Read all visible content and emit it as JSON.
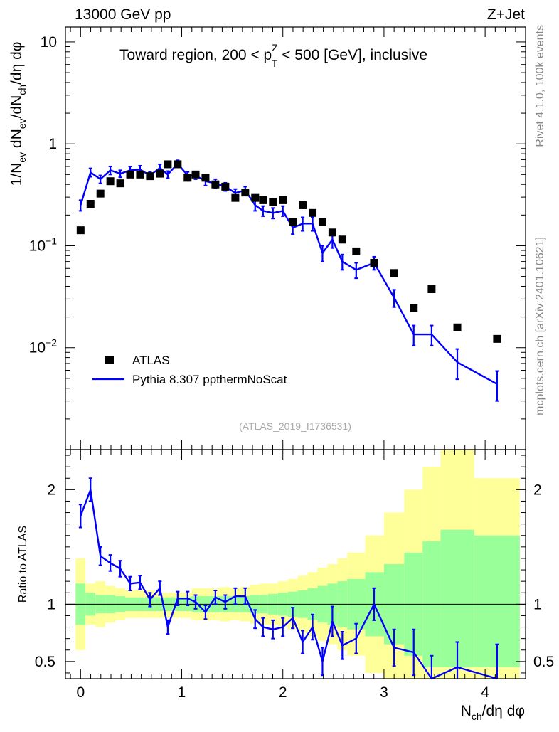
{
  "header": {
    "left": "13000 GeV pp",
    "right": "Z+Jet"
  },
  "side": {
    "rivet": "Rivet 4.1.0,  100k events",
    "mcplots": "mcplots.cern.ch [arXiv:2401.10621]"
  },
  "colors": {
    "pythia": "#0000ff",
    "yellow": "#ffff99",
    "green": "#99ff99",
    "atlas": "#000000"
  },
  "chart_data": [
    {
      "type": "scatter",
      "scale": "log",
      "title": "Toward region, 200 < p_T^Z < 500 [GeV], inclusive",
      "title_parts": {
        "pre": "Toward region, 200 < p",
        "sup": "Z",
        "sub": "T",
        "post": " < 500 [GeV], inclusive"
      },
      "ylabel": "1/N_ev dN_ev/dN_ch/dη dφ",
      "ylabel_parts": [
        "1/N",
        "ev",
        " dN",
        "ev",
        "/dN",
        "ch",
        "/dη dφ"
      ],
      "xlim": [
        -0.15,
        4.4
      ],
      "ylim": [
        0.001,
        14
      ],
      "yticks": [
        {
          "value": 10,
          "label": "10"
        },
        {
          "value": 1,
          "label": "1"
        },
        {
          "value": 0.1,
          "base": "10",
          "exp": "−1"
        },
        {
          "value": 0.01,
          "base": "10",
          "exp": "−2"
        }
      ],
      "watermark": "(ATLAS_2019_I1736531)",
      "legend": {
        "position": "bottom-left",
        "entries": [
          "ATLAS",
          "Pythia 8.307 ppthermNoScat"
        ]
      },
      "series": [
        {
          "name": "ATLAS",
          "x": [
            0.0,
            0.098,
            0.196,
            0.294,
            0.392,
            0.49,
            0.588,
            0.686,
            0.784,
            0.862,
            0.96,
            1.058,
            1.137,
            1.235,
            1.333,
            1.431,
            1.53,
            1.628,
            1.726,
            1.804,
            1.902,
            2.0,
            2.098,
            2.196,
            2.294,
            2.392,
            2.49,
            2.588,
            2.725,
            2.902,
            3.1,
            3.294,
            3.471,
            3.725,
            4.118
          ],
          "y": [
            0.142,
            0.258,
            0.325,
            0.43,
            0.41,
            0.5,
            0.5,
            0.482,
            0.51,
            0.63,
            0.63,
            0.465,
            0.5,
            0.465,
            0.4,
            0.38,
            0.295,
            0.333,
            0.295,
            0.28,
            0.27,
            0.28,
            0.17,
            0.25,
            0.21,
            0.17,
            0.135,
            0.115,
            0.088,
            0.068,
            0.054,
            0.0245,
            0.0375,
            0.0158,
            0.0122
          ]
        },
        {
          "name": "Pythia 8.307 ppthermNoScat",
          "x": [
            0.0,
            0.098,
            0.196,
            0.294,
            0.392,
            0.49,
            0.588,
            0.686,
            0.784,
            0.862,
            0.96,
            1.058,
            1.137,
            1.235,
            1.333,
            1.431,
            1.53,
            1.628,
            1.726,
            1.804,
            1.902,
            2.0,
            2.098,
            2.196,
            2.294,
            2.392,
            2.49,
            2.588,
            2.725,
            2.902,
            3.1,
            3.294,
            3.471,
            3.725,
            4.118
          ],
          "y": [
            0.25,
            0.525,
            0.45,
            0.55,
            0.51,
            0.55,
            0.56,
            0.49,
            0.58,
            0.5,
            0.64,
            0.49,
            0.49,
            0.43,
            0.41,
            0.38,
            0.33,
            0.35,
            0.25,
            0.22,
            0.21,
            0.22,
            0.15,
            0.165,
            0.165,
            0.085,
            0.115,
            0.07,
            0.058,
            0.068,
            0.031,
            0.0135,
            0.0135,
            0.0072,
            0.0044
          ],
          "yerr_up": [
            0.03,
            0.05,
            0.04,
            0.05,
            0.04,
            0.05,
            0.05,
            0.04,
            0.05,
            0.04,
            0.05,
            0.04,
            0.04,
            0.04,
            0.04,
            0.035,
            0.03,
            0.03,
            0.03,
            0.025,
            0.025,
            0.025,
            0.02,
            0.025,
            0.025,
            0.015,
            0.02,
            0.012,
            0.01,
            0.01,
            0.006,
            0.003,
            0.003,
            0.0025,
            0.0015
          ],
          "yerr_down": [
            0.03,
            0.05,
            0.04,
            0.05,
            0.04,
            0.05,
            0.05,
            0.04,
            0.05,
            0.04,
            0.05,
            0.04,
            0.04,
            0.04,
            0.04,
            0.035,
            0.03,
            0.03,
            0.03,
            0.025,
            0.025,
            0.025,
            0.02,
            0.025,
            0.025,
            0.015,
            0.02,
            0.012,
            0.01,
            0.01,
            0.006,
            0.003,
            0.003,
            0.0023,
            0.0014
          ]
        }
      ]
    },
    {
      "type": "line",
      "scale": "linear",
      "ylabel": "Ratio to ATLAS",
      "xlabel": "N_ch/dη dφ",
      "xlabel_parts": [
        "N",
        "ch",
        "/dη dφ"
      ],
      "xlim": [
        -0.15,
        4.4
      ],
      "ylim": [
        0.35,
        2.35
      ],
      "xticks": [
        0,
        1,
        2,
        3,
        4
      ],
      "yticks": [
        {
          "value": 2,
          "label": "2"
        },
        {
          "value": 1,
          "label": "1"
        },
        {
          "value": 0.5,
          "label": "0.5"
        }
      ],
      "reference_line": 1,
      "bands": {
        "edges": [
          -0.049,
          0.049,
          0.147,
          0.245,
          0.343,
          0.441,
          0.539,
          0.637,
          0.735,
          0.833,
          0.911,
          1.009,
          1.098,
          1.186,
          1.284,
          1.382,
          1.48,
          1.579,
          1.677,
          1.765,
          1.853,
          1.951,
          2.049,
          2.147,
          2.245,
          2.343,
          2.441,
          2.539,
          2.637,
          2.814,
          3.0,
          3.2,
          3.382,
          3.559,
          3.892,
          4.343
        ],
        "yellow_lo": [
          0.6,
          0.82,
          0.8,
          0.84,
          0.86,
          0.88,
          0.88,
          0.88,
          0.88,
          0.88,
          0.88,
          0.88,
          0.86,
          0.86,
          0.86,
          0.85,
          0.86,
          0.85,
          0.83,
          0.82,
          0.82,
          0.8,
          0.78,
          0.75,
          0.72,
          0.68,
          0.65,
          0.6,
          0.55,
          0.4,
          0.35,
          0.35,
          0.35,
          0.35,
          0.35
        ],
        "yellow_hi": [
          1.4,
          1.18,
          1.2,
          1.16,
          1.14,
          1.12,
          1.12,
          1.12,
          1.1,
          1.1,
          1.1,
          1.1,
          1.14,
          1.14,
          1.14,
          1.15,
          1.14,
          1.15,
          1.17,
          1.18,
          1.18,
          1.2,
          1.22,
          1.25,
          1.28,
          1.32,
          1.35,
          1.4,
          1.45,
          1.6,
          1.8,
          2.0,
          2.2,
          2.4,
          2.1
        ],
        "green_lo": [
          0.82,
          0.9,
          0.92,
          0.92,
          0.93,
          0.94,
          0.94,
          0.94,
          0.94,
          0.94,
          0.94,
          0.94,
          0.93,
          0.93,
          0.93,
          0.93,
          0.93,
          0.93,
          0.92,
          0.92,
          0.91,
          0.9,
          0.89,
          0.88,
          0.86,
          0.84,
          0.82,
          0.8,
          0.78,
          0.72,
          0.65,
          0.55,
          0.45,
          0.45,
          0.45
        ],
        "green_hi": [
          1.18,
          1.1,
          1.08,
          1.08,
          1.07,
          1.06,
          1.06,
          1.06,
          1.06,
          1.06,
          1.06,
          1.06,
          1.07,
          1.07,
          1.07,
          1.07,
          1.07,
          1.07,
          1.08,
          1.08,
          1.09,
          1.1,
          1.11,
          1.12,
          1.14,
          1.16,
          1.18,
          1.2,
          1.22,
          1.28,
          1.35,
          1.45,
          1.55,
          1.65,
          1.6
        ]
      },
      "series": [
        {
          "name": "Pythia 8.307 ppthermNoScat / ATLAS",
          "x": [
            0.0,
            0.098,
            0.196,
            0.294,
            0.392,
            0.49,
            0.588,
            0.686,
            0.784,
            0.862,
            0.96,
            1.058,
            1.137,
            1.235,
            1.333,
            1.431,
            1.53,
            1.628,
            1.726,
            1.804,
            1.902,
            2.0,
            2.098,
            2.196,
            2.294,
            2.392,
            2.49,
            2.588,
            2.725,
            2.902,
            3.1,
            3.294,
            3.471,
            3.725,
            4.118
          ],
          "y": [
            1.77,
            2.0,
            1.42,
            1.36,
            1.31,
            1.18,
            1.19,
            1.04,
            1.14,
            0.8,
            1.05,
            1.05,
            1.02,
            0.93,
            1.06,
            1.02,
            1.07,
            1.07,
            0.87,
            0.8,
            0.78,
            0.8,
            0.88,
            0.67,
            0.8,
            0.5,
            0.85,
            0.64,
            0.7,
            1.0,
            0.62,
            0.58,
            0.35,
            0.45,
            0.35
          ],
          "yerr": [
            0.1,
            0.1,
            0.08,
            0.07,
            0.07,
            0.06,
            0.06,
            0.06,
            0.06,
            0.06,
            0.06,
            0.06,
            0.06,
            0.06,
            0.06,
            0.06,
            0.07,
            0.07,
            0.08,
            0.08,
            0.08,
            0.08,
            0.09,
            0.1,
            0.11,
            0.12,
            0.13,
            0.12,
            0.13,
            0.14,
            0.16,
            0.2,
            0.2,
            0.22,
            0.3
          ]
        }
      ]
    }
  ]
}
